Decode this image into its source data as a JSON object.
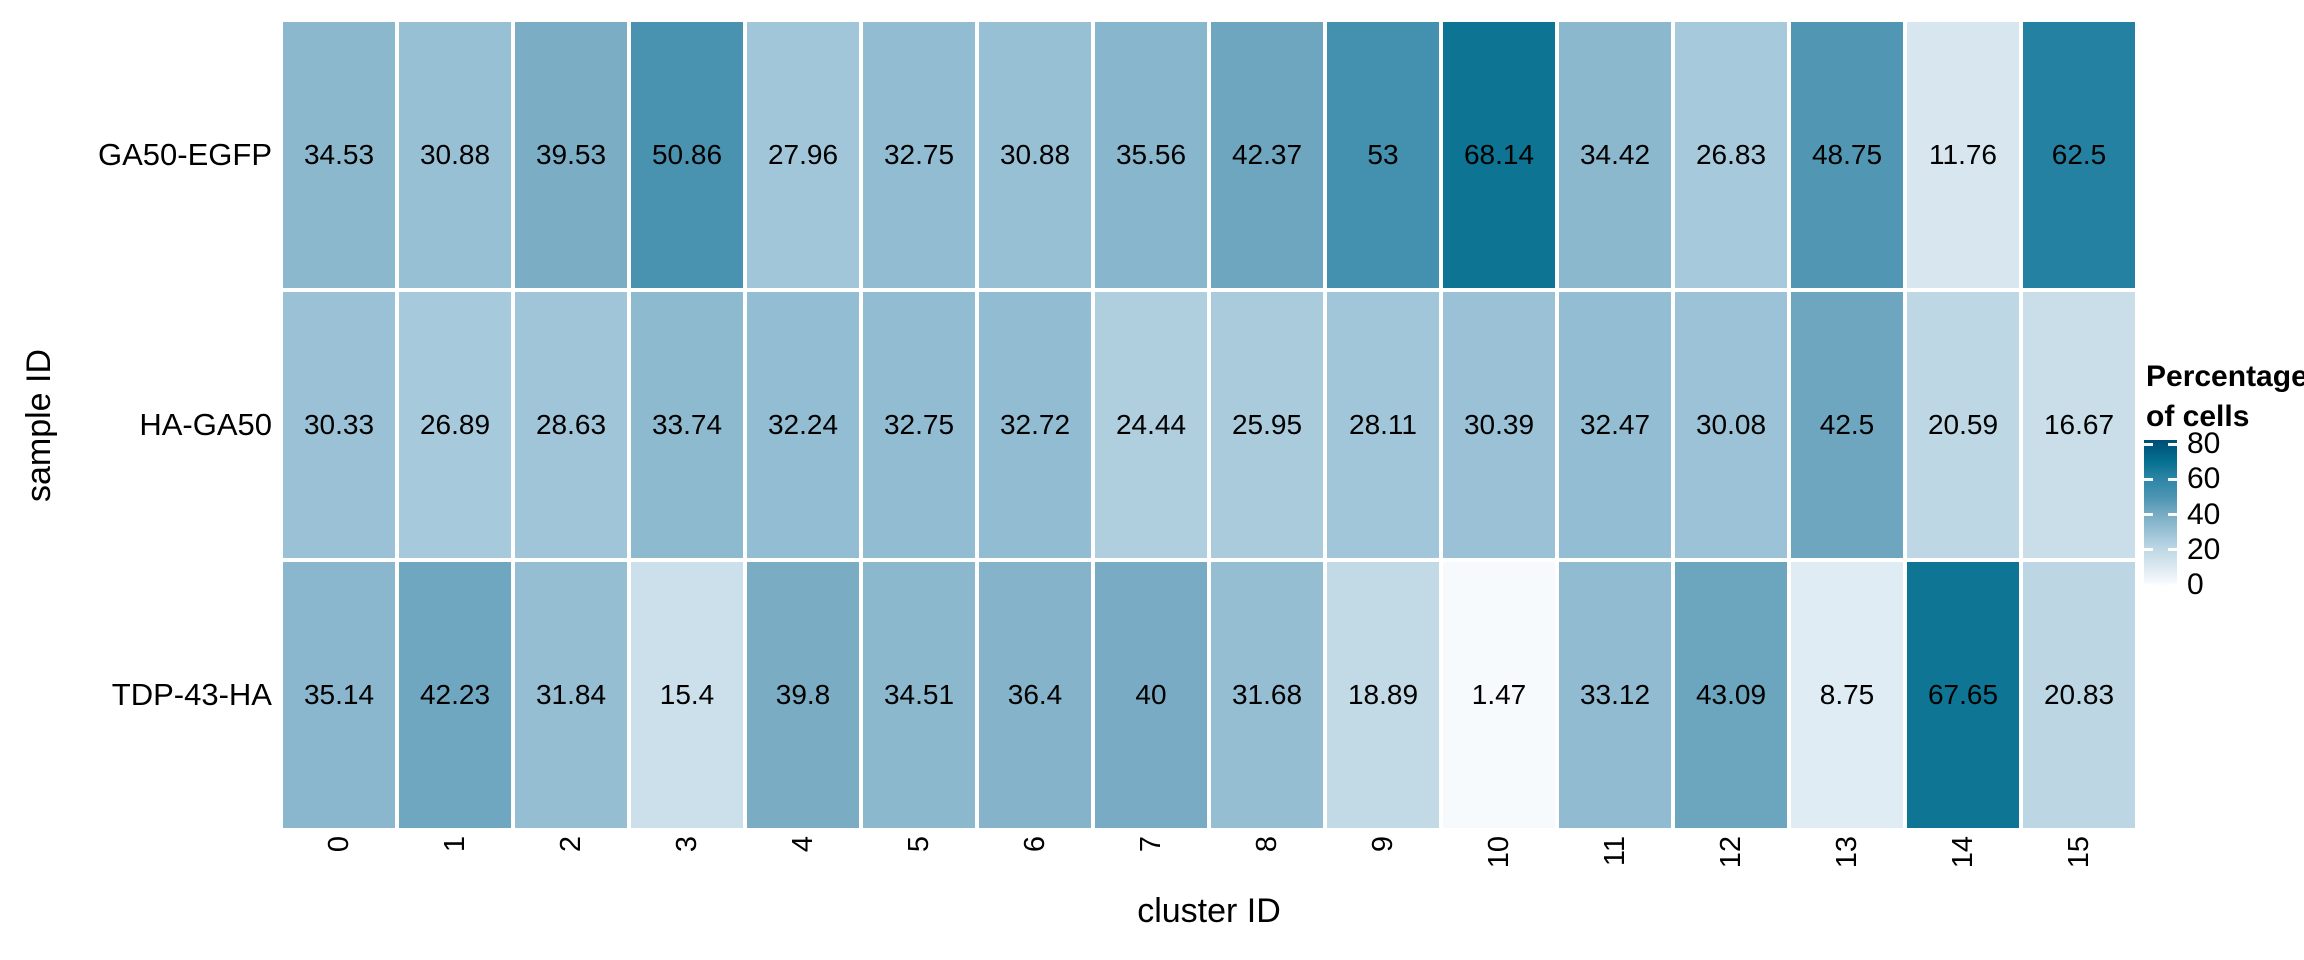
{
  "y_axis": {
    "title": "sample ID"
  },
  "x_axis": {
    "title": "cluster ID"
  },
  "legend": {
    "title_line1": "Percentage",
    "title_line2": "of cells",
    "tick_values": [
      80,
      60,
      40,
      20,
      0
    ]
  },
  "chart_data": {
    "type": "heatmap",
    "rows": [
      "GA50-EGFP",
      "HA-GA50",
      "TDP-43-HA"
    ],
    "columns": [
      "0",
      "1",
      "2",
      "3",
      "4",
      "5",
      "6",
      "7",
      "8",
      "9",
      "10",
      "11",
      "12",
      "13",
      "14",
      "15"
    ],
    "series": [
      {
        "name": "GA50-EGFP",
        "values": [
          34.53,
          30.88,
          39.53,
          50.86,
          27.96,
          32.75,
          30.88,
          35.56,
          42.37,
          53,
          68.14,
          34.42,
          26.83,
          48.75,
          11.76,
          62.5
        ]
      },
      {
        "name": "HA-GA50",
        "values": [
          30.33,
          26.89,
          28.63,
          33.74,
          32.24,
          32.75,
          32.72,
          24.44,
          25.95,
          28.11,
          30.39,
          32.47,
          30.08,
          42.5,
          20.59,
          16.67
        ]
      },
      {
        "name": "TDP-43-HA",
        "values": [
          35.14,
          42.23,
          31.84,
          15.4,
          39.8,
          34.51,
          36.4,
          40,
          31.68,
          18.89,
          1.47,
          33.12,
          43.09,
          8.75,
          67.65,
          20.83
        ]
      }
    ],
    "xlabel": "cluster ID",
    "ylabel": "sample ID",
    "legend_title": "Percentage of cells",
    "zlim": [
      0,
      80
    ],
    "legend_position": "right",
    "colorscale_anchors": [
      {
        "v": 0,
        "c": "#FBFDFE"
      },
      {
        "v": 10,
        "c": "#DCE9F1"
      },
      {
        "v": 20,
        "c": "#BFD8E5"
      },
      {
        "v": 30,
        "c": "#9BC2D6"
      },
      {
        "v": 40,
        "c": "#79ACC4"
      },
      {
        "v": 50,
        "c": "#4B94B2"
      },
      {
        "v": 60,
        "c": "#2F86A7"
      },
      {
        "v": 70,
        "c": "#05708F"
      },
      {
        "v": 80,
        "c": "#00537A"
      }
    ],
    "cell_gap_color": "#FFFFFF"
  }
}
